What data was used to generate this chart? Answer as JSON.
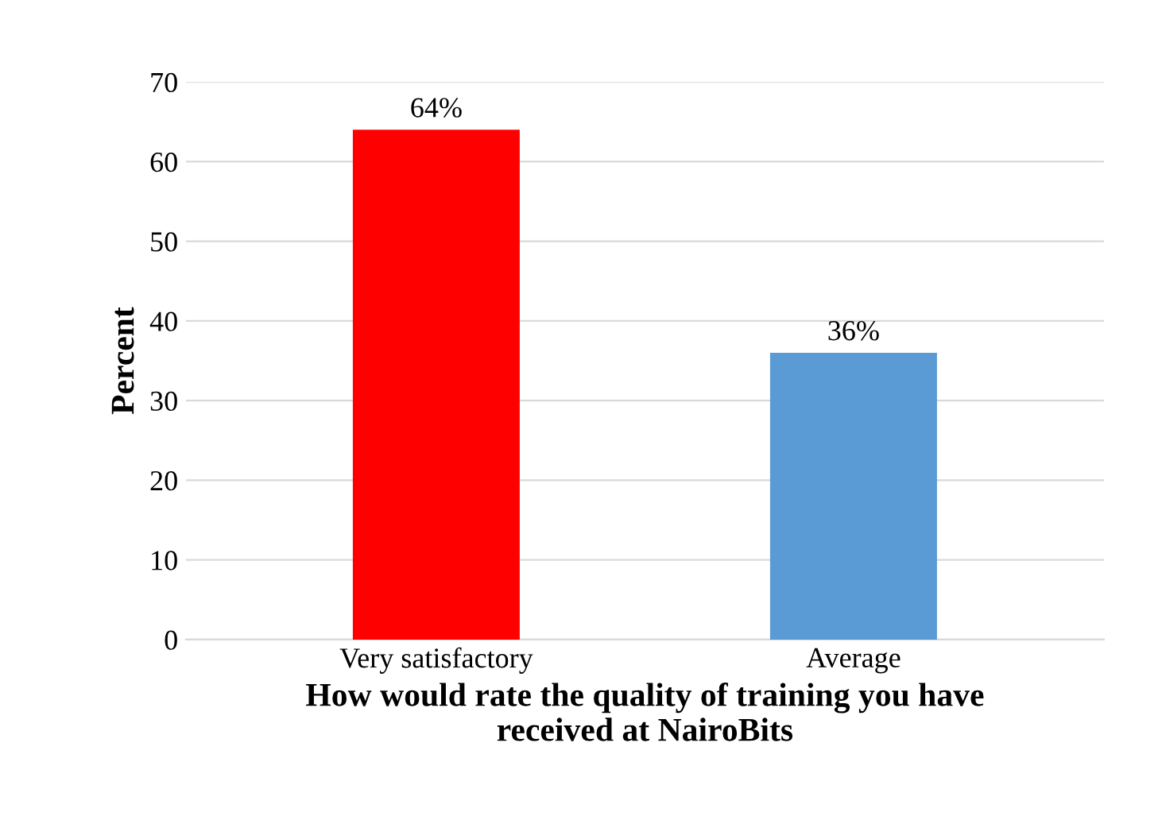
{
  "chart_data": {
    "type": "bar",
    "categories": [
      "Very satisfactory",
      "Average"
    ],
    "values": [
      64,
      36
    ],
    "colors": [
      "#ff0000",
      "#5b9bd5"
    ],
    "value_labels": [
      "64%",
      "36%"
    ],
    "xlabel": "How would rate the quality of training you have\nreceived at NairoBits",
    "ylabel": "Percent",
    "ylim": [
      0,
      70
    ],
    "yticks": [
      0,
      10,
      20,
      30,
      40,
      50,
      60,
      70
    ],
    "grid": "y"
  }
}
